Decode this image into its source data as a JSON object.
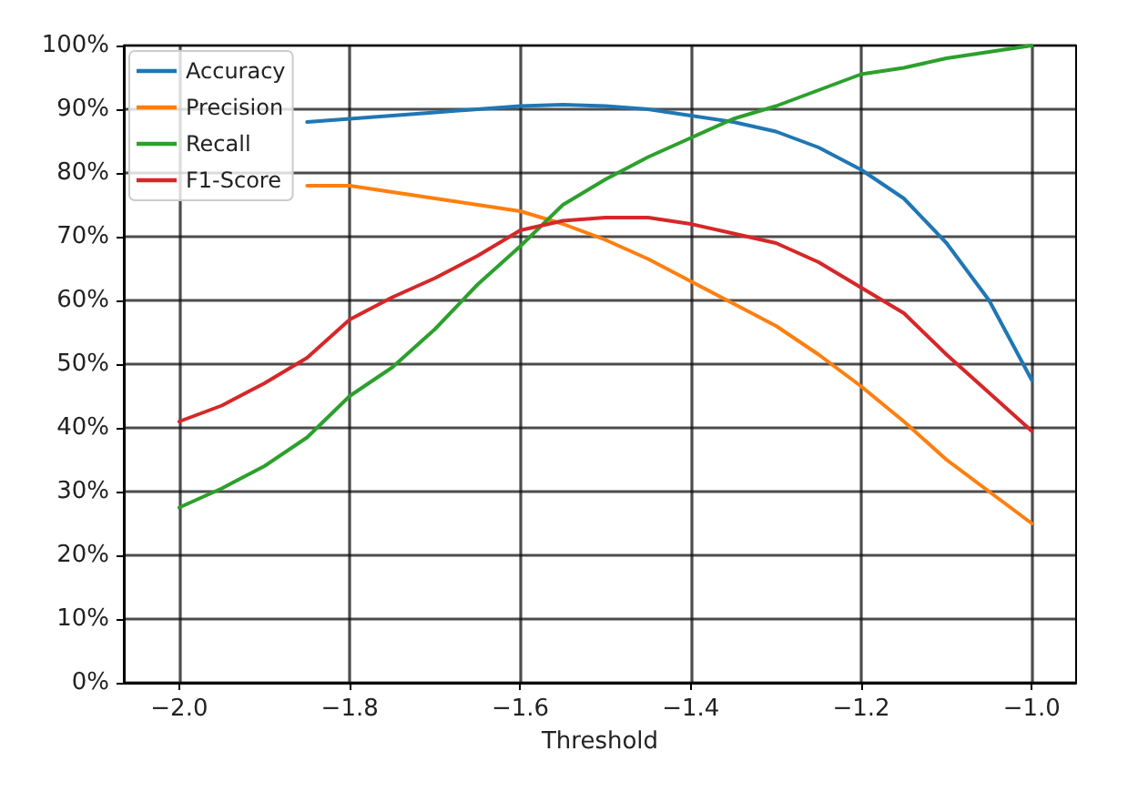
{
  "chart_data": {
    "type": "line",
    "xlabel": "Threshold",
    "x": [
      -2.0,
      -1.95,
      -1.9,
      -1.85,
      -1.8,
      -1.75,
      -1.7,
      -1.65,
      -1.6,
      -1.55,
      -1.5,
      -1.45,
      -1.4,
      -1.35,
      -1.3,
      -1.25,
      -1.2,
      -1.15,
      -1.1,
      -1.05,
      -1.0
    ],
    "series": [
      {
        "name": "Accuracy",
        "color": "#1f77b4",
        "values": [
          null,
          null,
          null,
          88,
          88.5,
          89,
          89.5,
          90,
          90.5,
          90.7,
          90.5,
          90,
          89,
          88,
          86.5,
          84,
          80.5,
          76,
          69,
          60,
          47.5
        ]
      },
      {
        "name": "Precision",
        "color": "#ff7f0e",
        "values": [
          null,
          null,
          null,
          78,
          78,
          77,
          76,
          75,
          74,
          72,
          69.5,
          66.5,
          63,
          59.5,
          56,
          51.5,
          46.5,
          41,
          35,
          30,
          25
        ]
      },
      {
        "name": "Recall",
        "color": "#2ca02c",
        "values": [
          27.5,
          30.5,
          34,
          38.5,
          45,
          49.5,
          55.5,
          62.5,
          68.5,
          75,
          79,
          82.5,
          85.5,
          88.5,
          90.5,
          93,
          95.5,
          96.5,
          98,
          99,
          100
        ]
      },
      {
        "name": "F1-Score",
        "color": "#d62728",
        "values": [
          41,
          43.5,
          47,
          51,
          57,
          60.5,
          63.5,
          67,
          71,
          72.5,
          73,
          73,
          72,
          70.5,
          69,
          66,
          62,
          58,
          51.5,
          45.5,
          39.5
        ]
      }
    ],
    "xlim": [
      -2.065,
      -0.948
    ],
    "xticks": [
      {
        "value": -2.0,
        "label": "−2.0"
      },
      {
        "value": -1.8,
        "label": "−1.8"
      },
      {
        "value": -1.6,
        "label": "−1.6"
      },
      {
        "value": -1.4,
        "label": "−1.4"
      },
      {
        "value": -1.2,
        "label": "−1.2"
      },
      {
        "value": -1.0,
        "label": "−1.0"
      }
    ],
    "ylim": [
      0,
      100
    ],
    "yticks": [
      {
        "value": 0,
        "label": "0%"
      },
      {
        "value": 10,
        "label": "10%"
      },
      {
        "value": 20,
        "label": "20%"
      },
      {
        "value": 30,
        "label": "30%"
      },
      {
        "value": 40,
        "label": "40%"
      },
      {
        "value": 50,
        "label": "50%"
      },
      {
        "value": 60,
        "label": "60%"
      },
      {
        "value": 70,
        "label": "70%"
      },
      {
        "value": 80,
        "label": "80%"
      },
      {
        "value": 90,
        "label": "90%"
      },
      {
        "value": 100,
        "label": "100%"
      }
    ],
    "grid": true,
    "legend": "top left",
    "marker": "none",
    "line_style": "solid"
  }
}
